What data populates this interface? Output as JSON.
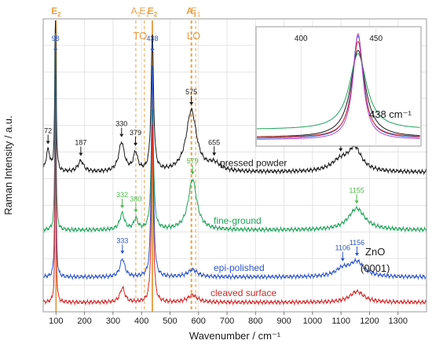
{
  "chart_data": [
    {
      "type": "line",
      "title": "",
      "xlabel": "Wavenumber / cm⁻¹",
      "ylabel": "Raman Intensity / a.u.",
      "xlim": [
        55,
        1400
      ],
      "x_ticks": [
        100,
        200,
        300,
        400,
        500,
        600,
        700,
        800,
        900,
        1000,
        1100,
        1200,
        1300
      ],
      "grid": true,
      "legend": "inline labels next to each curve",
      "mode_lines": [
        {
          "label": "E",
          "sub": "2",
          "x": 100,
          "color": "#E8A24A",
          "style": "solid",
          "bold": true
        },
        {
          "label": "A",
          "sub": "1",
          "x": 380,
          "color": "#E8A24A",
          "style": "dashed"
        },
        {
          "label": "E",
          "sub": "1",
          "x": 410,
          "color": "#E8A24A",
          "style": "dashed"
        },
        {
          "label": "E",
          "sub": "2",
          "x": 438,
          "color": "#E8A24A",
          "style": "solid",
          "bold": true
        },
        {
          "label": "A",
          "sub": "1",
          "x": 575,
          "color": "#E8A24A",
          "style": "dashed",
          "bold": true
        },
        {
          "label": "E",
          "sub": "1",
          "x": 590,
          "color": "#E8A24A",
          "style": "dashed"
        }
      ],
      "mode_group_labels": [
        {
          "text": "TO",
          "x": 395
        },
        {
          "text": "LO",
          "x": 583
        }
      ],
      "series": [
        {
          "name": "pressed powder",
          "color": "#1a1a1a",
          "offset": 0.36,
          "peaks": [
            [
              72,
              0.06,
              8
            ],
            [
              98,
              0.55,
              2.2
            ],
            [
              187,
              0.03,
              12
            ],
            [
              330,
              0.08,
              12
            ],
            [
              379,
              0.05,
              9
            ],
            [
              438,
              0.38,
              5
            ],
            [
              575,
              0.17,
              22
            ],
            [
              655,
              0.02,
              25
            ],
            [
              1099,
              0.03,
              40
            ],
            [
              1149,
              0.06,
              28
            ]
          ],
          "labels": [
            {
              "text": "72",
              "x": 72,
              "color": "#1a1a1a"
            },
            {
              "text": "98",
              "x": 98,
              "color": "#2d55c8"
            },
            {
              "text": "187",
              "x": 187,
              "color": "#1a1a1a"
            },
            {
              "text": "330",
              "x": 330,
              "color": "#1a1a1a"
            },
            {
              "text": "379",
              "x": 379,
              "color": "#1a1a1a"
            },
            {
              "text": "438",
              "x": 438,
              "color": "#2d55c8"
            },
            {
              "text": "575",
              "x": 575,
              "color": "#1a1a1a"
            },
            {
              "text": "655",
              "x": 655,
              "color": "#1a1a1a"
            },
            {
              "text": "1099",
              "x": 1099,
              "color": "#1a1a1a"
            },
            {
              "text": "1149",
              "x": 1149,
              "color": "#1a1a1a"
            }
          ]
        },
        {
          "name": "fine-ground",
          "color": "#1fa35a",
          "offset": 0.2,
          "peaks": [
            [
              98,
              0.55,
              2.2
            ],
            [
              332,
              0.045,
              10
            ],
            [
              380,
              0.03,
              8
            ],
            [
              438,
              0.34,
              5
            ],
            [
              579,
              0.14,
              18
            ],
            [
              1155,
              0.06,
              35
            ]
          ],
          "labels": [
            {
              "text": "332",
              "x": 332,
              "color": "#4fb84a"
            },
            {
              "text": "380",
              "x": 380,
              "color": "#4fb84a"
            },
            {
              "text": "579",
              "x": 579,
              "color": "#4fb84a"
            },
            {
              "text": "1155",
              "x": 1155,
              "color": "#4fb84a"
            }
          ]
        },
        {
          "name": "epi-polished",
          "color": "#2d55c8",
          "offset": 0.07,
          "peaks": [
            [
              98,
              0.65,
              2.0
            ],
            [
              333,
              0.05,
              10
            ],
            [
              438,
              0.6,
              4
            ],
            [
              579,
              0.02,
              20
            ],
            [
              1106,
              0.02,
              30
            ],
            [
              1156,
              0.04,
              30
            ]
          ],
          "labels": [
            {
              "text": "333",
              "x": 333,
              "color": "#2d55c8"
            },
            {
              "text": "1106",
              "x": 1106,
              "color": "#2d55c8"
            },
            {
              "text": "1156",
              "x": 1156,
              "color": "#2d55c8"
            }
          ]
        },
        {
          "name": "cleaved surface",
          "color": "#d02a2a",
          "offset": 0.0,
          "peaks": [
            [
              98,
              0.55,
              2.0
            ],
            [
              333,
              0.04,
              10
            ],
            [
              438,
              0.5,
              4
            ],
            [
              579,
              0.02,
              20
            ],
            [
              1156,
              0.03,
              30
            ]
          ],
          "labels": []
        }
      ],
      "annotations": [
        {
          "text": "ZnO",
          "x": 1220,
          "y": 0.13
        },
        {
          "text": "(0001)",
          "x": 1220,
          "y": 0.085
        }
      ]
    },
    {
      "type": "line",
      "title": "",
      "inset": true,
      "xlim": [
        370,
        480
      ],
      "x_ticks": [
        400,
        450
      ],
      "annotation": "438 cm⁻¹",
      "series": [
        {
          "color": "#1fa35a",
          "peak_x": 438,
          "height": 0.68,
          "width": 7,
          "baseline": 0.12
        },
        {
          "color": "#1a1a1a",
          "peak_x": 438,
          "height": 0.78,
          "width": 6,
          "baseline": 0.05
        },
        {
          "color": "#2d55c8",
          "peak_x": 438,
          "height": 0.92,
          "width": 4.5,
          "baseline": 0.04
        },
        {
          "color": "#d02a2a",
          "peak_x": 438,
          "height": 0.86,
          "width": 4.5,
          "baseline": 0.05
        },
        {
          "color": "#b24ad0",
          "peak_x": 438,
          "height": 0.95,
          "width": 4,
          "baseline": 0.03
        }
      ]
    }
  ]
}
